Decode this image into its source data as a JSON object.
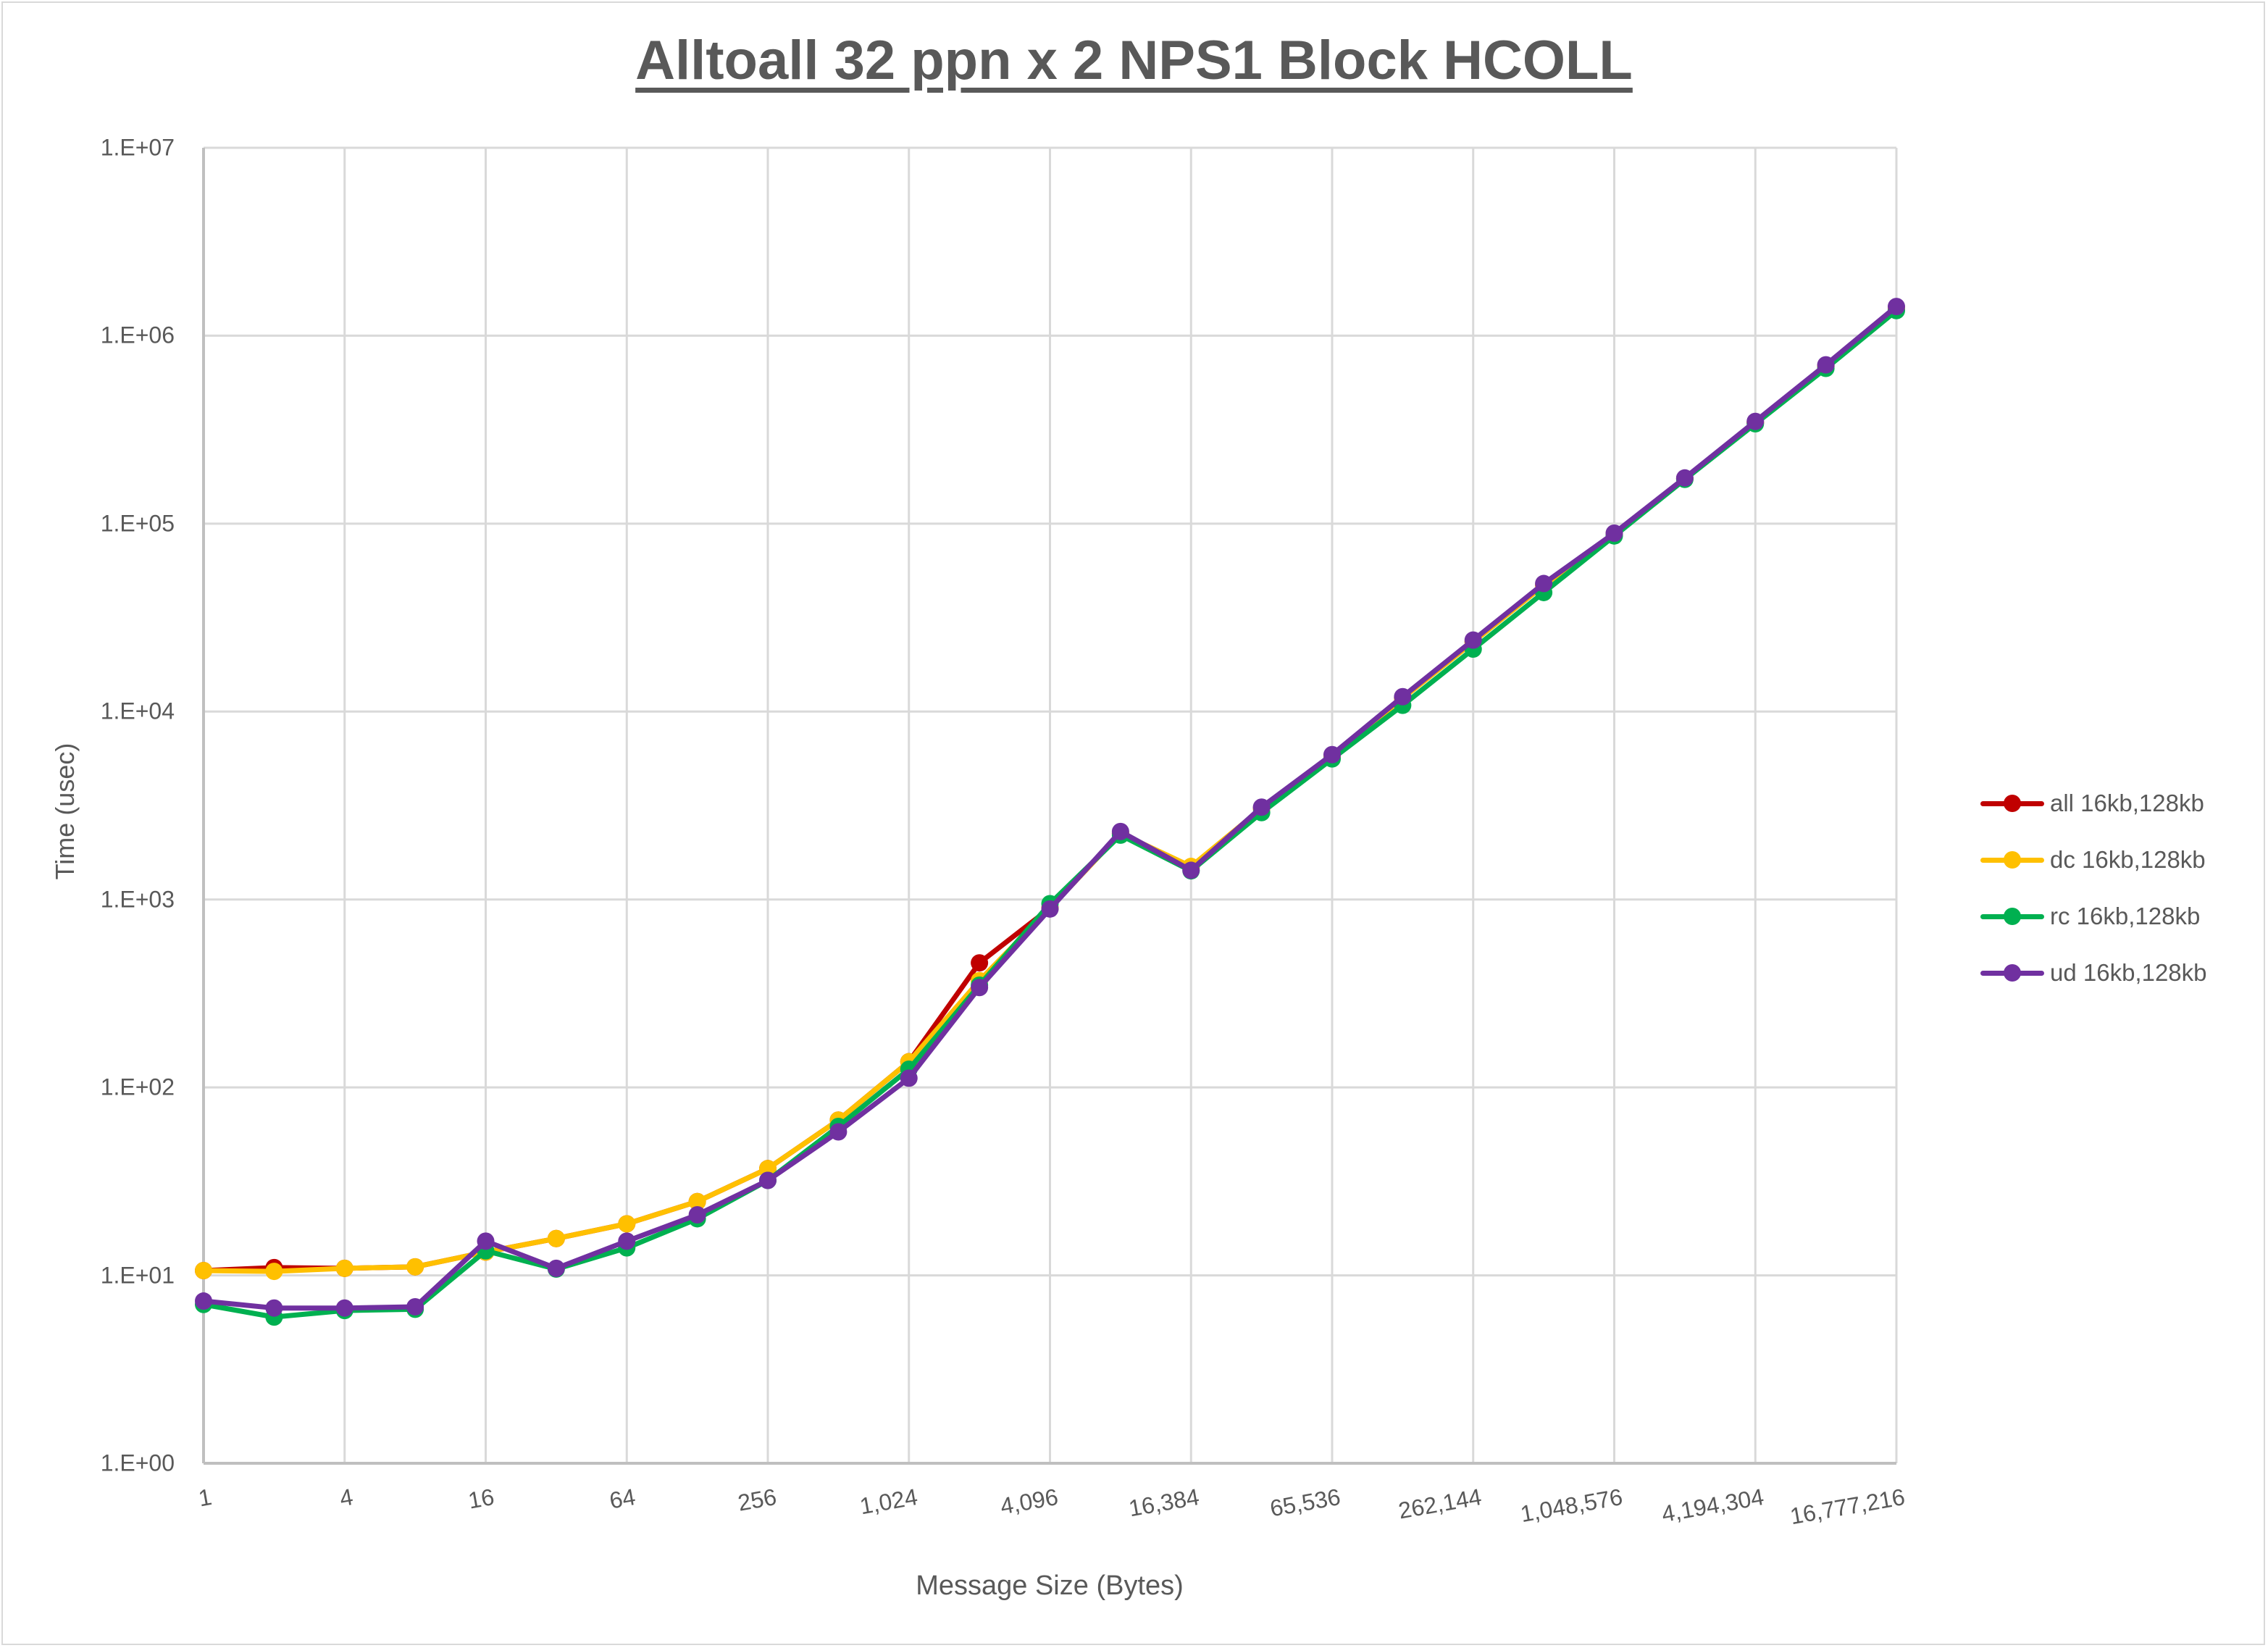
{
  "chart_data": {
    "type": "line",
    "title": "Alltoall 32 ppn x 2 NPS1 Block HCOLL",
    "xlabel": "Message Size (Bytes)",
    "ylabel": "Time (usec)",
    "yscale": "log",
    "ylim": [
      1,
      10000000
    ],
    "grid": true,
    "legend_position": "right",
    "yticks": [
      "1.E+00",
      "1.E+01",
      "1.E+02",
      "1.E+03",
      "1.E+04",
      "1.E+05",
      "1.E+06",
      "1.E+07"
    ],
    "xtick_labels": [
      "1",
      "4",
      "16",
      "64",
      "256",
      "1,024",
      "4,096",
      "16,384",
      "65,536",
      "262,144",
      "1,048,576",
      "4,194,304",
      "16,777,216"
    ],
    "x": [
      1,
      2,
      4,
      8,
      16,
      32,
      64,
      128,
      256,
      512,
      1024,
      2048,
      4096,
      8192,
      16384,
      32768,
      65536,
      131072,
      262144,
      524288,
      1048576,
      2097152,
      4194304,
      8388608,
      16777216
    ],
    "series": [
      {
        "name": "all 16kb,128kb",
        "color": "#C00000",
        "values": [
          10.6,
          11.0,
          10.9,
          11.1,
          13.3,
          15.7,
          18.8,
          24.7,
          37,
          67,
          137,
          460,
          900,
          2250,
          1480,
          3050,
          5800,
          11800,
          23500,
          47000,
          88000,
          174000,
          345000,
          690000,
          1400000
        ]
      },
      {
        "name": "dc 16kb,128kb",
        "color": "#FFC000",
        "values": [
          10.6,
          10.5,
          10.9,
          11.1,
          13.3,
          15.7,
          18.8,
          24.7,
          37,
          67,
          137,
          370,
          900,
          2250,
          1500,
          3050,
          5800,
          11800,
          23500,
          47000,
          88000,
          174000,
          345000,
          690000,
          1400000
        ]
      },
      {
        "name": "rc 16kb,128kb",
        "color": "#00B050",
        "values": [
          7.0,
          6.0,
          6.5,
          6.6,
          13.5,
          10.8,
          14,
          20,
          32,
          62,
          125,
          350,
          950,
          2200,
          1420,
          2900,
          5600,
          10800,
          21500,
          43000,
          86000,
          172000,
          340000,
          670000,
          1360000
        ]
      },
      {
        "name": "ud 16kb,128kb",
        "color": "#7030A0",
        "values": [
          7.3,
          6.7,
          6.7,
          6.8,
          15.2,
          10.9,
          15.2,
          21,
          32,
          58,
          112,
          340,
          890,
          2300,
          1430,
          3100,
          5900,
          12000,
          24000,
          48000,
          89000,
          175000,
          350000,
          700000,
          1430000
        ]
      }
    ]
  },
  "legend": {
    "items": [
      {
        "label": "all 16kb,128kb",
        "color": "#C00000"
      },
      {
        "label": "dc 16kb,128kb",
        "color": "#FFC000"
      },
      {
        "label": "rc 16kb,128kb",
        "color": "#00B050"
      },
      {
        "label": "ud 16kb,128kb",
        "color": "#7030A0"
      }
    ]
  }
}
